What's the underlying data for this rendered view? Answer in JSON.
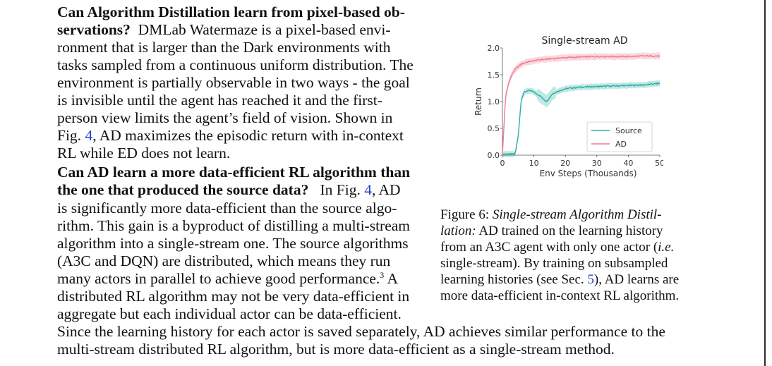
{
  "paragraph1": {
    "heading_part1": "Can Algorithm Distillation learn from pixel-based ob-",
    "heading_part2": "servations?",
    "lines": [
      "DMLab Watermaze is a pixel-based envi-",
      "ronment that is larger than the Dark environments with",
      "tasks sampled from a continuous uniform distribution. The",
      "environment is partially observable in two ways - the goal",
      "is invisible until the agent has reached it and the first-",
      "person view limits the agent’s field of vision. Shown in",
      "RL while ED does not learn."
    ],
    "fig_prefix": "Fig. ",
    "fig_ref": "4",
    "fig_suffix": ", AD maximizes the episodic return with in-context"
  },
  "paragraph2": {
    "heading_line1": "Can AD learn a more data-efficient RL algorithm than",
    "heading_line2": "the one that produced the source data?",
    "line2_tail_prefix": "In Fig. ",
    "line2_tail_ref": "4",
    "line2_tail_suffix": ", AD",
    "lines": [
      "is significantly more data-efficient than the source algo-",
      "rithm. This gain is a byproduct of distilling a multi-stream",
      "algorithm into a single-stream one. The source algorithms",
      "(A3C and DQN) are distributed, which means they run",
      "distributed RL algorithm may not be very data-efficient in",
      "aggregate but each individual actor can be data-efficient.",
      "Since the learning history for each actor is saved separately, AD achieves similar performance to the",
      "multi-stream distributed RL algorithm, but is more data-efficient as a single-stream method."
    ],
    "actors_line": "many actors in parallel to achieve good performance.",
    "footnote": "3",
    "actors_tail": " A"
  },
  "caption": {
    "label": "Figure 6:",
    "title_italic_1": "Single-stream Algorithm Distil-",
    "title_italic_2": "lation:",
    "line2_rest": " AD trained on the learning history",
    "line3_pre": "from an A3C agent with only one actor (",
    "line3_ie": "i.e.",
    "line4": "single-stream).  By training on subsampled",
    "line5_pre": "learning histories (see Sec. ",
    "line5_ref": "5",
    "line5_post": "), AD learns are",
    "line6": "more data-efficient in-context RL algorithm."
  },
  "chart_data": {
    "type": "line",
    "title": "Single-stream AD",
    "xlabel": "Env Steps (Thousands)",
    "ylabel": "Return",
    "xlim": [
      0,
      50
    ],
    "ylim": [
      0.0,
      2.0
    ],
    "xticks": [
      "0",
      "10",
      "20",
      "30",
      "40",
      "50"
    ],
    "yticks": [
      "0.0",
      "0.5",
      "1.0",
      "1.5",
      "2.0"
    ],
    "grid": false,
    "legend_position": "lower-right",
    "x": [
      0,
      1,
      2,
      3,
      4,
      5,
      6,
      7,
      8,
      9,
      10,
      12,
      14,
      16,
      18,
      20,
      25,
      30,
      35,
      40,
      45,
      50
    ],
    "series": [
      {
        "name": "Source",
        "color": "#2ab0a2",
        "values": [
          0.02,
          0.02,
          0.02,
          0.02,
          0.02,
          0.35,
          1.05,
          1.18,
          1.2,
          1.2,
          1.18,
          1.1,
          1.0,
          1.15,
          1.2,
          1.24,
          1.27,
          1.28,
          1.29,
          1.3,
          1.31,
          1.34
        ]
      },
      {
        "name": "AD",
        "color": "#f07a8c",
        "values": [
          0.0,
          1.1,
          1.35,
          1.5,
          1.6,
          1.65,
          1.7,
          1.72,
          1.74,
          1.75,
          1.76,
          1.78,
          1.79,
          1.8,
          1.81,
          1.82,
          1.83,
          1.84,
          1.84,
          1.84,
          1.85,
          1.85
        ]
      }
    ]
  }
}
